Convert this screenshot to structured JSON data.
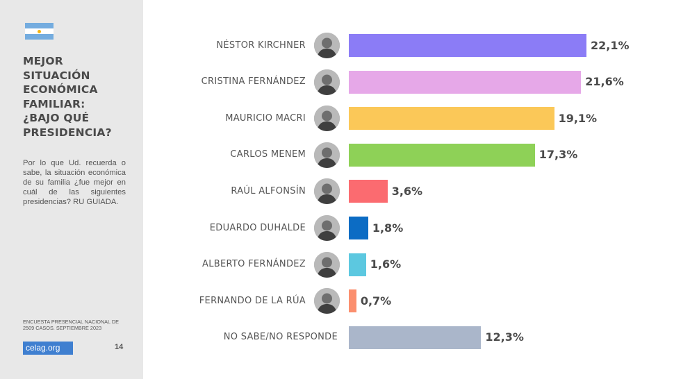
{
  "sidebar": {
    "title_lines": [
      "MEJOR",
      "SITUACIÓN",
      "ECONÓMICA",
      "FAMILIAR:",
      "¿BAJO QUÉ",
      "PRESIDENCIA?"
    ],
    "question": "Por lo que Ud. recuerda o sabe, la situación económica de su familia ¿fue mejor en cuál de las siguientes presidencias? RU GUIADA.",
    "source_line1": "ENCUESTA PRESENCIAL NACIONAL DE",
    "source_line2": "2509 CASOS. SEPTIEMBRE 2023",
    "logo_text": "celag.org",
    "page_number": "14"
  },
  "chart_data": {
    "type": "bar",
    "orientation": "horizontal",
    "unit": "%",
    "categories": [
      "NÉSTOR KIRCHNER",
      "CRISTINA FERNÁNDEZ",
      "MAURICIO MACRI",
      "CARLOS MENEM",
      "RAÚL ALFONSÍN",
      "EDUARDO DUHALDE",
      "ALBERTO FERNÁNDEZ",
      "FERNANDO DE LA RÚA",
      "NO SABE/NO RESPONDE"
    ],
    "values": [
      22.1,
      21.6,
      19.1,
      17.3,
      3.6,
      1.8,
      1.6,
      0.7,
      12.3
    ],
    "value_labels": [
      "22,1%",
      "21,6%",
      "19,1%",
      "17,3%",
      "3,6%",
      "1,8%",
      "1,6%",
      "0,7%",
      "12,3%"
    ],
    "colors": [
      "#8b7cf6",
      "#e6a8e8",
      "#fbc858",
      "#8ed157",
      "#fb6b70",
      "#0c6cc4",
      "#5cc8e0",
      "#fb8f6e",
      "#aab6ca"
    ],
    "has_photo": [
      true,
      true,
      true,
      true,
      true,
      true,
      true,
      true,
      false
    ],
    "xlim": [
      0,
      22.1
    ],
    "grid": false,
    "legend": "none"
  },
  "colors": {
    "sidebar_bg": "#e8e8e8",
    "text": "#4a4a4a",
    "logo_bg": "#3f7fd0"
  }
}
